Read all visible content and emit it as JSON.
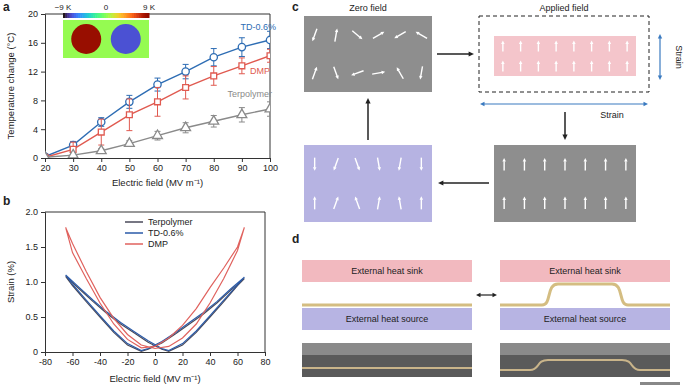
{
  "chart_data": [
    {
      "type": "line",
      "panel_label": "a",
      "x_label": "Electric field (MV m⁻¹)",
      "y_label": "Temperature change (°C)",
      "x": [
        20,
        30,
        40,
        50,
        60,
        70,
        80,
        90,
        100
      ],
      "xlim": [
        20,
        100
      ],
      "xticks": [
        20,
        30,
        40,
        50,
        60,
        70,
        80,
        90,
        100
      ],
      "ylim": [
        0,
        20
      ],
      "yticks": [
        0,
        4,
        8,
        12,
        16,
        20
      ],
      "series": [
        {
          "name": "TD-0.6%",
          "color": "#2e6db4",
          "marker": "circle",
          "values": [
            0.2,
            1.8,
            5.0,
            7.8,
            10.2,
            12.0,
            14.0,
            15.4,
            16.4
          ],
          "errors": [
            0.3,
            0.5,
            0.6,
            0.9,
            0.9,
            1.0,
            1.2,
            1.3,
            1.2
          ]
        },
        {
          "name": "DMP",
          "color": "#e05a50",
          "marker": "square",
          "values": [
            0.1,
            1.2,
            3.6,
            6.0,
            7.8,
            9.8,
            11.4,
            12.8,
            14.2
          ],
          "errors": [
            0.2,
            1.0,
            1.8,
            2.2,
            2.0,
            1.6,
            1.3,
            1.1,
            0.9
          ]
        },
        {
          "name": "Terpolymer",
          "color": "#8a8a8a",
          "marker": "triangle",
          "values": [
            0.1,
            0.4,
            1.0,
            2.0,
            3.1,
            4.2,
            5.1,
            6.0,
            6.8
          ],
          "errors": [
            0.1,
            0.2,
            0.3,
            0.4,
            0.6,
            0.7,
            0.8,
            1.0,
            1.0
          ]
        }
      ],
      "colorbar": {
        "range": [
          -9,
          9
        ],
        "ticks": [
          {
            "value": -9,
            "label": "−9 K"
          },
          0,
          {
            "value": 9,
            "label": "9 K"
          }
        ]
      }
    },
    {
      "type": "line",
      "panel_label": "b",
      "x_label": "Electric field (MV m⁻¹)",
      "y_label": "Strain (%)",
      "xlim": [
        -80,
        80
      ],
      "xticks": [
        -80,
        -60,
        -40,
        -20,
        0,
        20,
        40,
        60,
        80
      ],
      "ylim": [
        0,
        2
      ],
      "yticks": [
        0,
        0.5,
        {
          "value": 1,
          "label": "1.0"
        },
        1.5,
        {
          "value": 2,
          "label": "2.0"
        }
      ],
      "legend": "top",
      "series": [
        {
          "name": "Terpolymer",
          "color": "#4a4a5a",
          "x": [
            -65,
            -55,
            -45,
            -35,
            -25,
            -15,
            -5,
            5,
            10,
            20,
            30,
            40,
            50,
            60,
            65,
            55,
            45,
            35,
            25,
            15,
            5,
            -5,
            -10,
            -20,
            -30,
            -40,
            -50,
            -60,
            -65
          ],
          "values": [
            1.08,
            0.9,
            0.72,
            0.55,
            0.4,
            0.27,
            0.14,
            0.04,
            0.01,
            0.1,
            0.28,
            0.5,
            0.72,
            0.95,
            1.05,
            0.88,
            0.7,
            0.54,
            0.4,
            0.26,
            0.13,
            0.04,
            0.01,
            0.1,
            0.28,
            0.5,
            0.72,
            0.95,
            1.08
          ]
        },
        {
          "name": "TD-0.6%",
          "color": "#2a5aa8",
          "x": [
            -65,
            -55,
            -45,
            -35,
            -25,
            -15,
            -5,
            5,
            10,
            20,
            30,
            40,
            50,
            60,
            65,
            55,
            45,
            35,
            25,
            15,
            5,
            -5,
            -10,
            -20,
            -30,
            -40,
            -50,
            -60,
            -65
          ],
          "values": [
            1.1,
            0.92,
            0.74,
            0.57,
            0.42,
            0.29,
            0.16,
            0.05,
            0.02,
            0.12,
            0.3,
            0.52,
            0.74,
            0.96,
            1.07,
            0.9,
            0.72,
            0.56,
            0.42,
            0.28,
            0.15,
            0.05,
            0.02,
            0.12,
            0.3,
            0.52,
            0.74,
            0.97,
            1.1
          ]
        },
        {
          "name": "DMP",
          "color": "#e0625e",
          "x": [
            -65,
            -60,
            -50,
            -40,
            -30,
            -20,
            -10,
            0,
            10,
            20,
            30,
            40,
            50,
            60,
            65,
            60,
            50,
            40,
            30,
            20,
            10,
            0,
            -10,
            -20,
            -30,
            -40,
            -50,
            -60,
            -65
          ],
          "values": [
            1.78,
            1.55,
            1.15,
            0.78,
            0.48,
            0.25,
            0.1,
            0.05,
            0.08,
            0.2,
            0.4,
            0.7,
            1.05,
            1.45,
            1.78,
            1.5,
            1.2,
            0.92,
            0.62,
            0.38,
            0.2,
            0.08,
            0.06,
            0.18,
            0.4,
            0.7,
            1.05,
            1.42,
            1.78
          ]
        }
      ]
    }
  ],
  "diagrams": {
    "c": {
      "panel_label": "c",
      "zero_field": "Zero field",
      "applied_field": "Applied field",
      "strain": "Strain"
    },
    "d": {
      "panel_label": "d",
      "heat_sink": "External heat sink",
      "heat_source": "External heat source"
    }
  }
}
